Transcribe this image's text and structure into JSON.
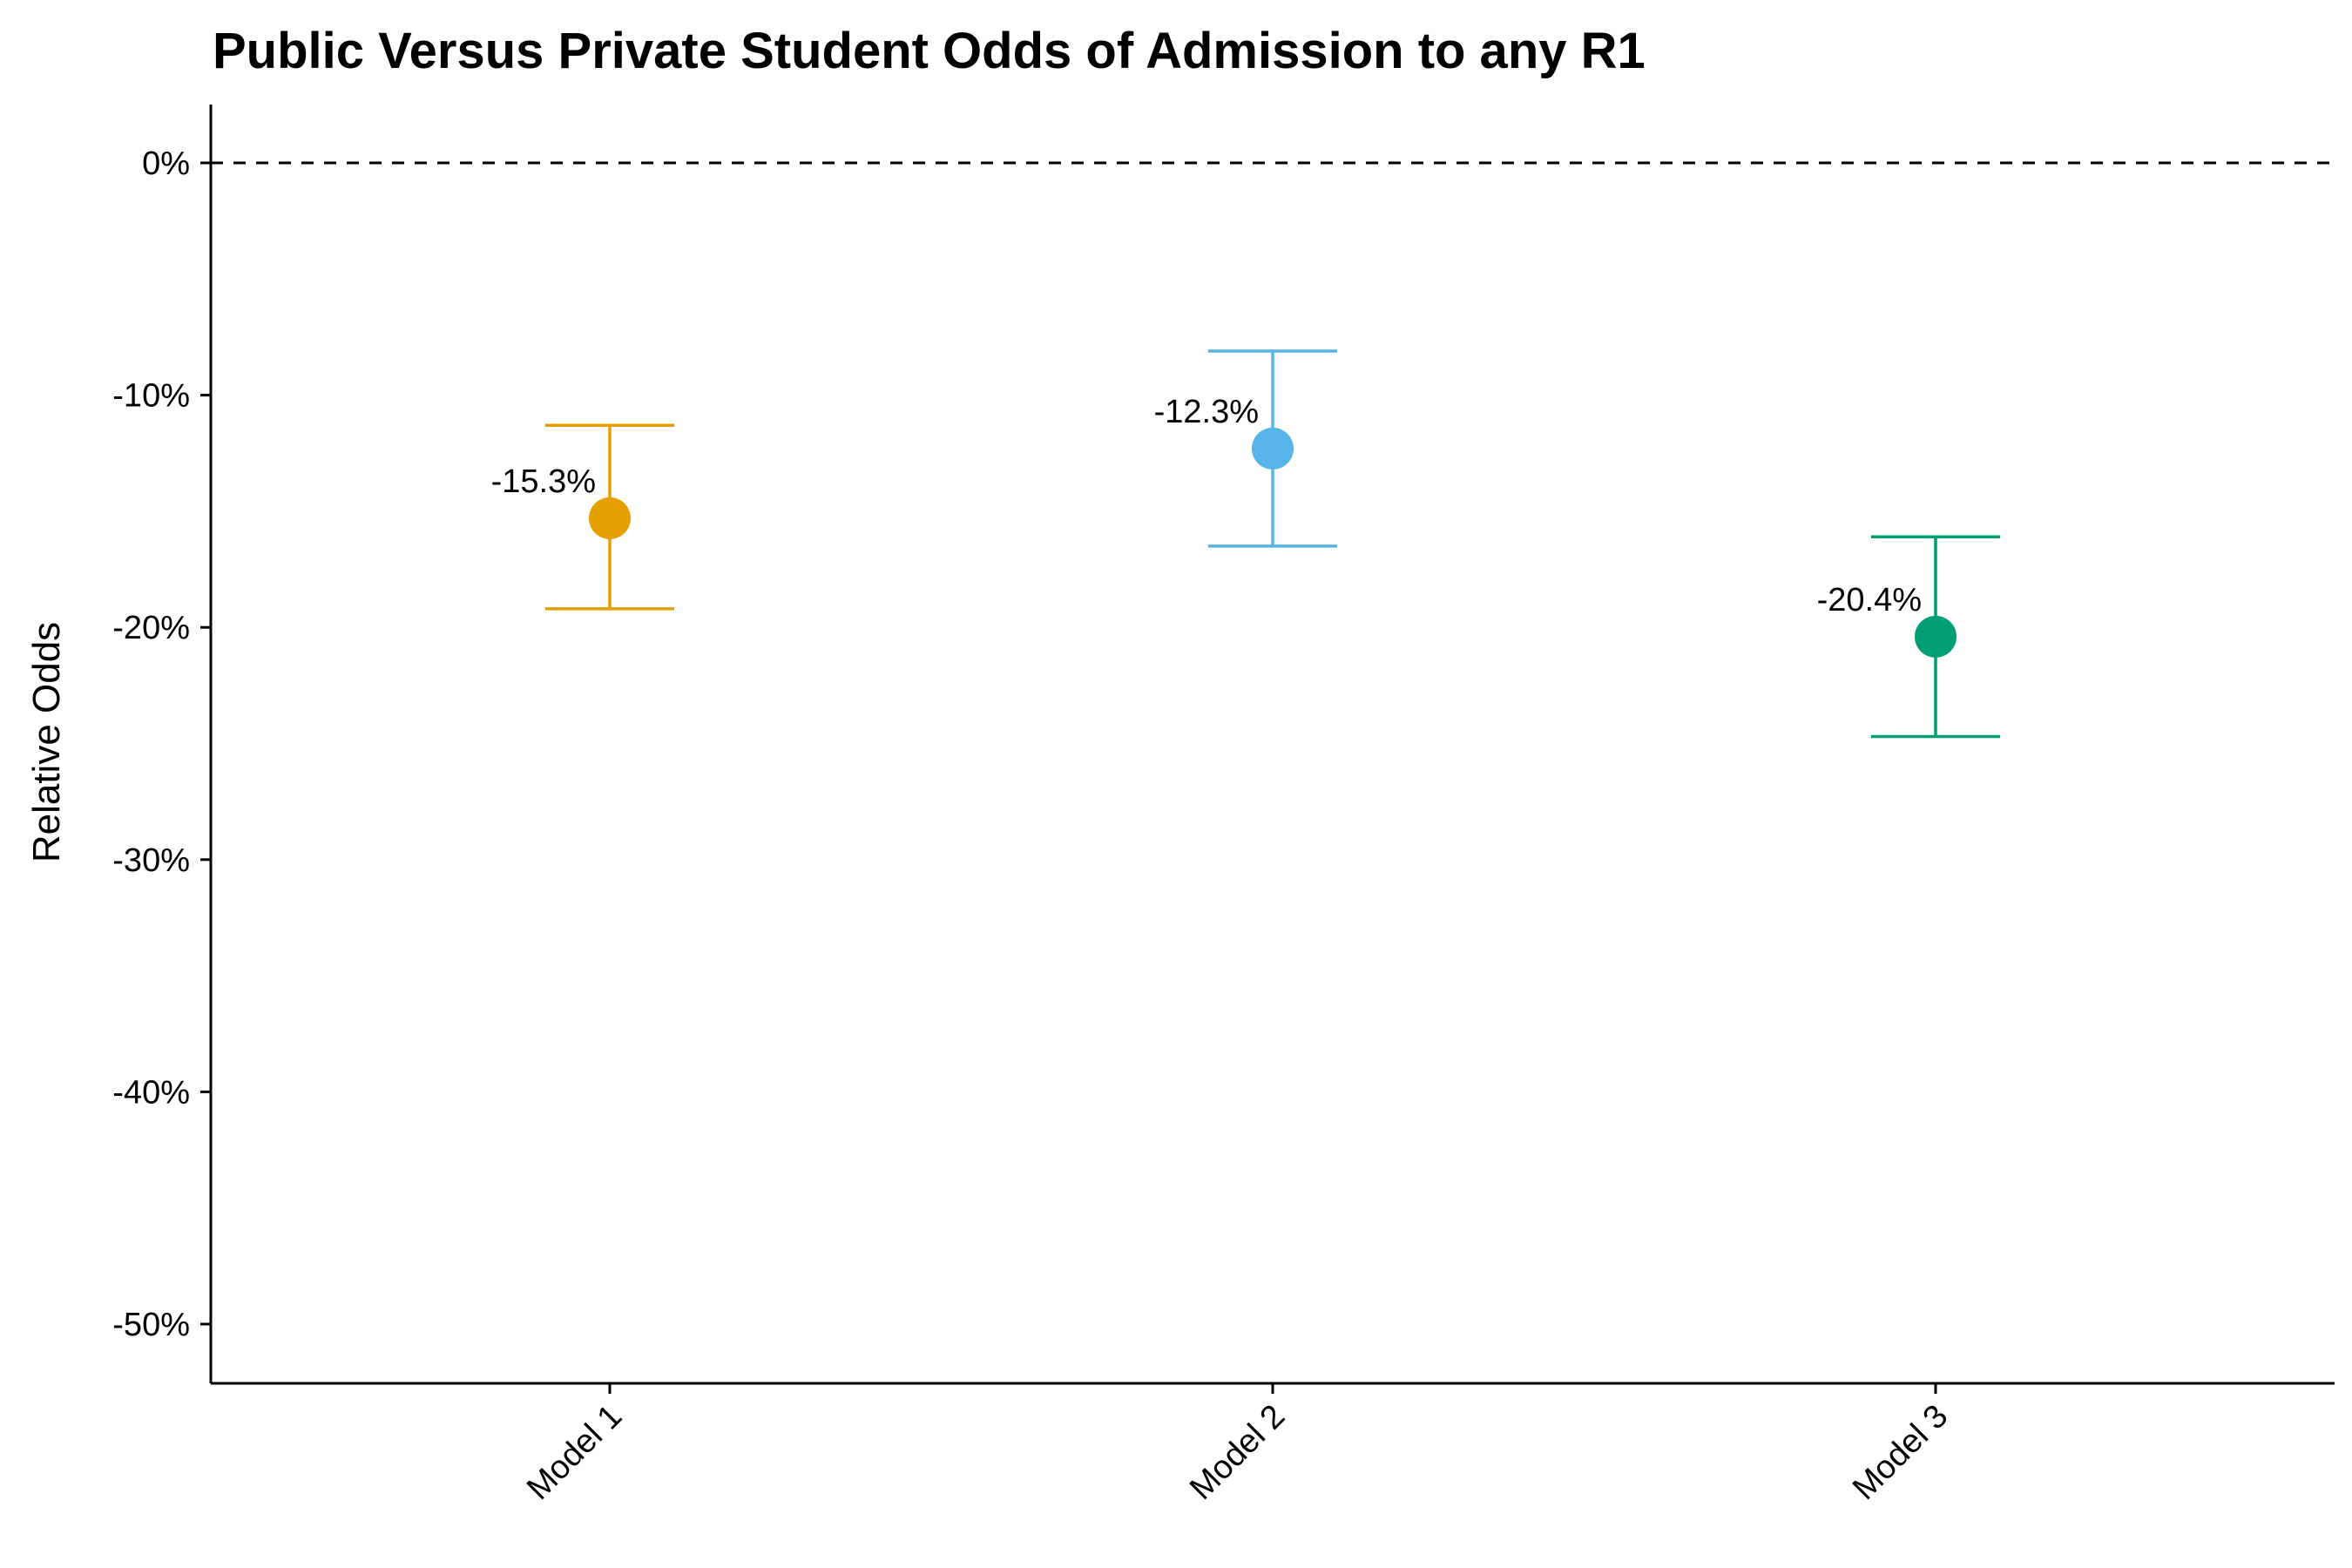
{
  "chart_data": {
    "type": "scatter",
    "title": "Public Versus Private Student Odds of Admission to any R1",
    "xlabel": "",
    "ylabel": "Relative Odds",
    "categories": [
      "Model 1",
      "Model 2",
      "Model 3"
    ],
    "points": [
      {
        "category": "Model 1",
        "value": -15.3,
        "lower": -19.2,
        "upper": -11.3,
        "label": "-15.3%",
        "color": "#E69F00"
      },
      {
        "category": "Model 2",
        "value": -12.3,
        "lower": -16.5,
        "upper": -8.1,
        "label": "-12.3%",
        "color": "#56B4E9"
      },
      {
        "category": "Model 3",
        "value": -20.4,
        "lower": -24.7,
        "upper": -16.1,
        "label": "-20.4%",
        "color": "#009E73"
      }
    ],
    "ylim": [
      -52.5,
      2.5
    ],
    "yticks": [
      0,
      -10,
      -20,
      -30,
      -40,
      -50
    ],
    "ytick_labels": [
      "0%",
      "-10%",
      "-20%",
      "-30%",
      "-40%",
      "-50%"
    ],
    "reference_line": {
      "value": 0,
      "style": "dashed"
    },
    "grid": false,
    "legend": "none"
  }
}
